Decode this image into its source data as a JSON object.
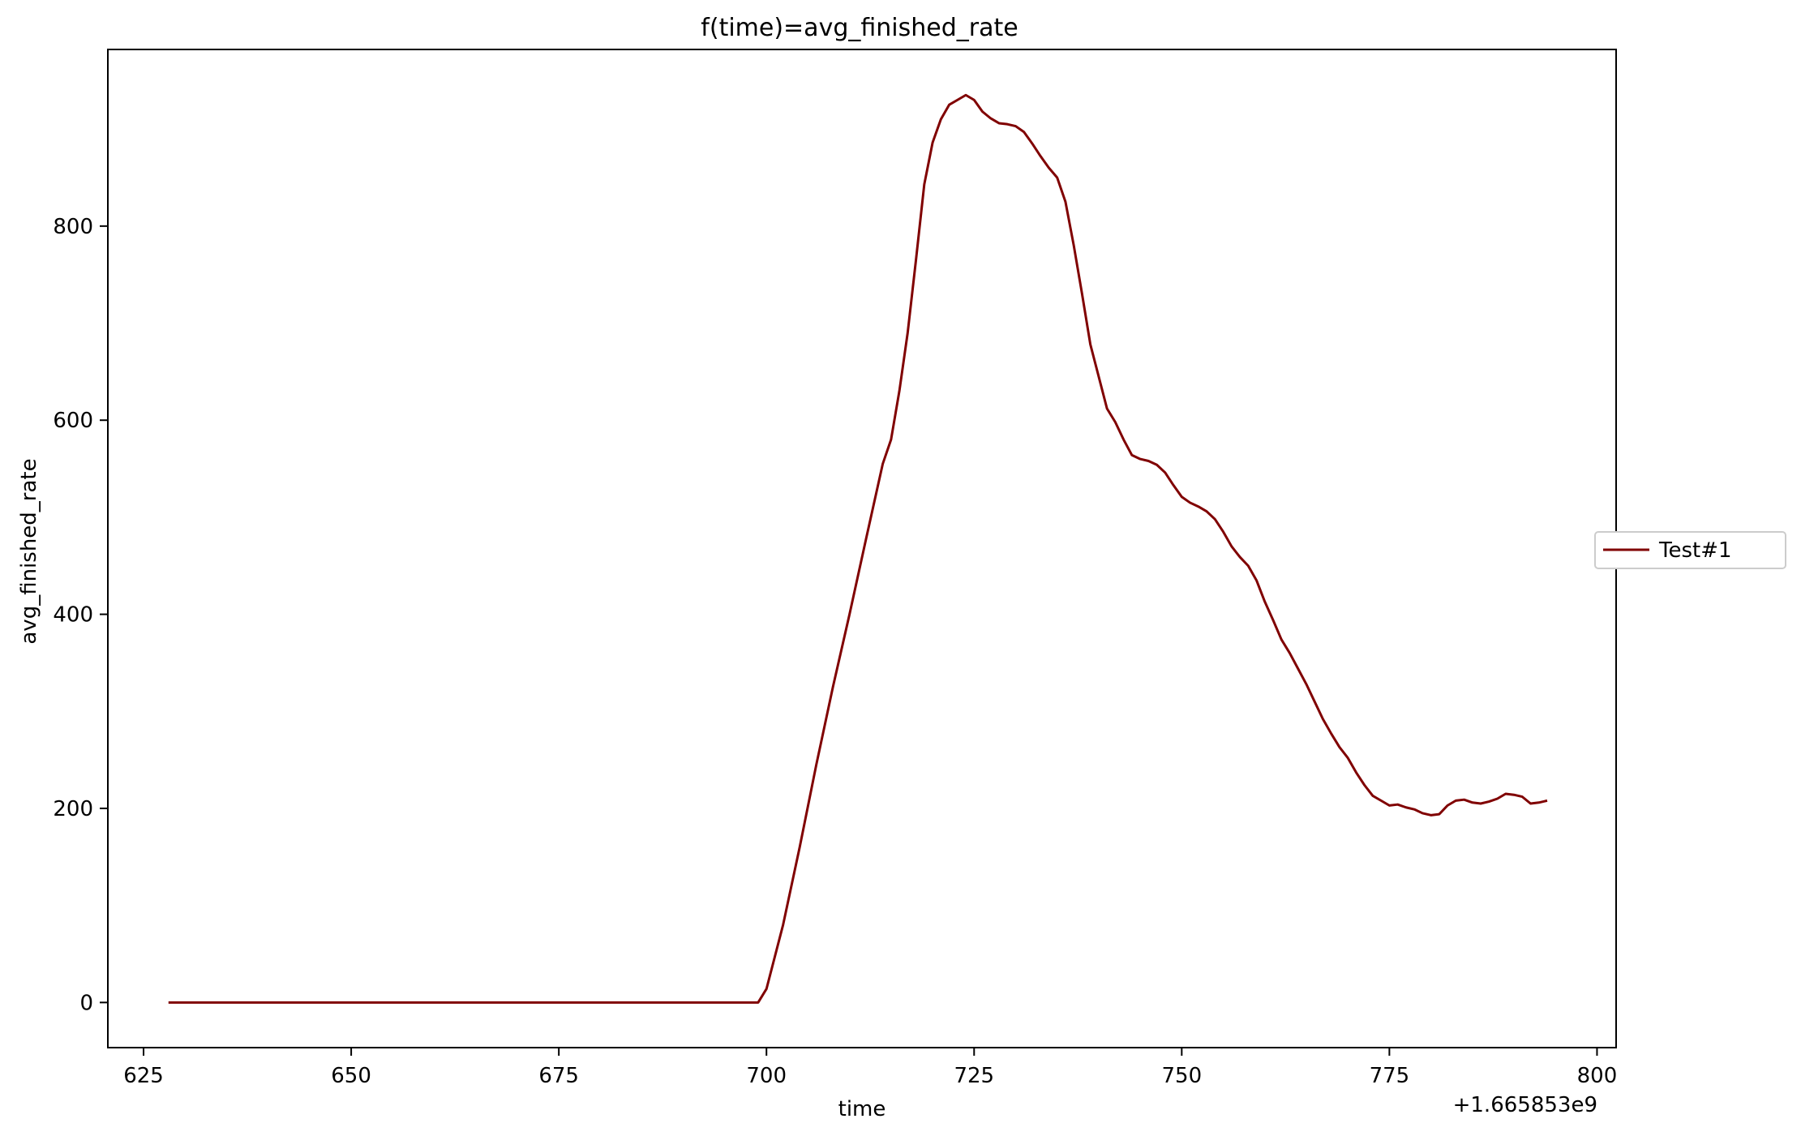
{
  "chart_data": {
    "type": "line",
    "title": "f(time)=avg_finished_rate",
    "xlabel": "time",
    "ylabel": "avg_finished_rate",
    "x_offset_label": "+1.665853e9",
    "xlim": [
      620.7,
      802.3
    ],
    "ylim": [
      -46.5,
      982
    ],
    "x_ticks": [
      625,
      650,
      675,
      700,
      725,
      750,
      775,
      800
    ],
    "y_ticks": [
      0,
      200,
      400,
      600,
      800
    ],
    "grid": false,
    "legend_position": "center-right-outside",
    "series": [
      {
        "name": "Test#1",
        "color": "#800000",
        "x": [
          628,
          699,
          700,
          702,
          704,
          706,
          708,
          710,
          712,
          714,
          715,
          716,
          717,
          718,
          719,
          720,
          721,
          722,
          723,
          724,
          725,
          726,
          727,
          728,
          729,
          730,
          731,
          732,
          733,
          734,
          735,
          736,
          737,
          738,
          739,
          740,
          741,
          742,
          743,
          744,
          745,
          746,
          747,
          748,
          749,
          750,
          751,
          752,
          753,
          754,
          755,
          756,
          757,
          758,
          759,
          760,
          761,
          762,
          763,
          764,
          765,
          766,
          767,
          768,
          769,
          770,
          771,
          772,
          773,
          774,
          775,
          776,
          777,
          778,
          779,
          780,
          781,
          782,
          783,
          784,
          785,
          786,
          787,
          788,
          789,
          790,
          791,
          792,
          793,
          794
        ],
        "y": [
          0,
          0,
          14,
          80,
          160,
          245,
          325,
          400,
          478,
          555,
          580,
          630,
          690,
          765,
          843,
          886,
          910,
          925,
          930,
          935,
          930,
          918,
          911,
          906,
          905,
          903,
          897,
          885,
          872,
          860,
          850,
          825,
          780,
          730,
          678,
          645,
          612,
          598,
          580,
          564,
          560,
          558,
          554,
          546,
          533,
          521,
          515,
          511,
          506,
          498,
          485,
          470,
          459,
          450,
          435,
          413,
          394,
          374,
          360,
          344,
          328,
          310,
          292,
          277,
          263,
          252,
          237,
          224,
          213,
          208,
          203,
          204,
          201,
          199,
          195,
          193,
          194,
          203,
          208,
          209,
          206,
          205,
          207,
          210,
          215,
          214,
          212,
          205,
          206,
          208
        ]
      }
    ]
  }
}
